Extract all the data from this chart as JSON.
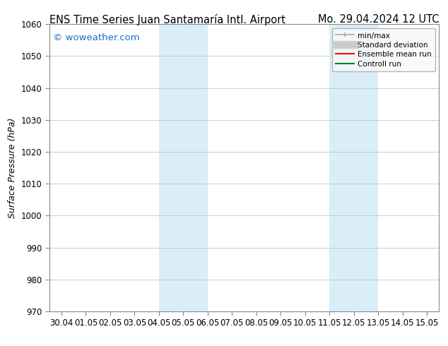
{
  "title_left": "ENS Time Series Juan Santamaría Intl. Airport",
  "title_right": "Mo. 29.04.2024 12 UTC",
  "ylabel": "Surface Pressure (hPa)",
  "watermark": "© woweather.com",
  "watermark_color": "#1a6fc4",
  "bg_color": "#ffffff",
  "plot_bg_color": "#ffffff",
  "shaded_regions": [
    {
      "xstart": 4.0,
      "xend": 6.0,
      "color": "#daeef9"
    },
    {
      "xstart": 11.0,
      "xend": 13.0,
      "color": "#daeef9"
    }
  ],
  "ylim": [
    970,
    1060
  ],
  "yticks": [
    970,
    980,
    990,
    1000,
    1010,
    1020,
    1030,
    1040,
    1050,
    1060
  ],
  "xtick_labels": [
    "30.04",
    "01.05",
    "02.05",
    "03.05",
    "04.05",
    "05.05",
    "06.05",
    "07.05",
    "08.05",
    "09.05",
    "10.05",
    "11.05",
    "12.05",
    "13.05",
    "14.05",
    "15.05"
  ],
  "xtick_positions": [
    0,
    1,
    2,
    3,
    4,
    5,
    6,
    7,
    8,
    9,
    10,
    11,
    12,
    13,
    14,
    15
  ],
  "xlim": [
    -0.5,
    15.5
  ],
  "legend_entries": [
    {
      "label": "min/max",
      "color": "#aaaaaa",
      "lw": 1.2,
      "style": "line_with_caps"
    },
    {
      "label": "Standard deviation",
      "color": "#cccccc",
      "lw": 7,
      "style": "thick"
    },
    {
      "label": "Ensemble mean run",
      "color": "#ff0000",
      "lw": 1.5,
      "style": "line"
    },
    {
      "label": "Controll run",
      "color": "#008000",
      "lw": 1.5,
      "style": "line"
    }
  ],
  "title_fontsize": 10.5,
  "axis_label_fontsize": 9,
  "tick_fontsize": 8.5,
  "watermark_fontsize": 9.5,
  "grid_color": "#bbbbbb",
  "grid_linestyle": "-",
  "grid_linewidth": 0.5,
  "spine_color": "#888888"
}
